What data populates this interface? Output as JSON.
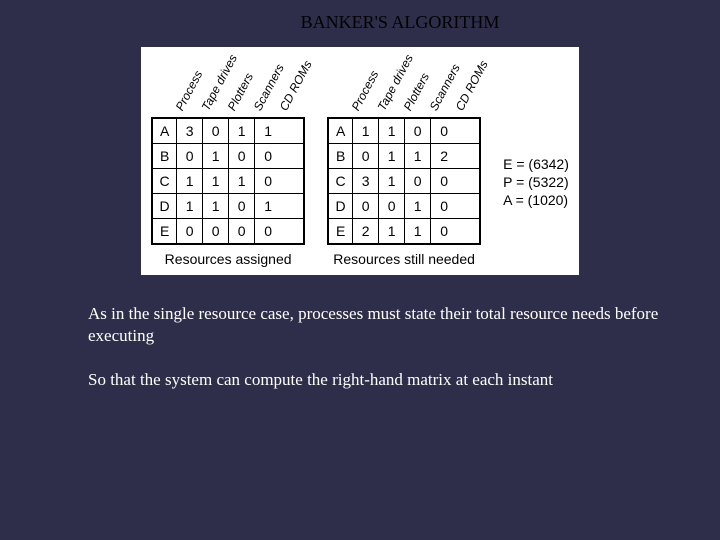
{
  "title": "BANKER'S ALGORITHM",
  "col_headers": [
    "Process",
    "Tape drives",
    "Plotters",
    "Scanners",
    "CD ROMs"
  ],
  "processes": [
    "A",
    "B",
    "C",
    "D",
    "E"
  ],
  "assigned": {
    "caption": "Resources assigned",
    "rows": [
      [
        3,
        0,
        1,
        1
      ],
      [
        0,
        1,
        0,
        0
      ],
      [
        1,
        1,
        1,
        0
      ],
      [
        1,
        1,
        0,
        1
      ],
      [
        0,
        0,
        0,
        0
      ]
    ]
  },
  "needed": {
    "caption": "Resources still needed",
    "rows": [
      [
        1,
        1,
        0,
        0
      ],
      [
        0,
        1,
        1,
        2
      ],
      [
        3,
        1,
        0,
        0
      ],
      [
        0,
        0,
        1,
        0
      ],
      [
        2,
        1,
        1,
        0
      ]
    ]
  },
  "vectors": {
    "E": "E = (6342)",
    "P": "P = (5322)",
    "A": "A = (1020)"
  },
  "para1": "As in the single resource case, processes must state their total resource needs before executing",
  "para2": " So that the system can compute the right-hand matrix at each instant",
  "colors": {
    "slide_bg": "#2e2e4a",
    "figure_bg": "#ffffff",
    "text_light": "#ffffff",
    "text_dark": "#000000",
    "border": "#000000"
  }
}
